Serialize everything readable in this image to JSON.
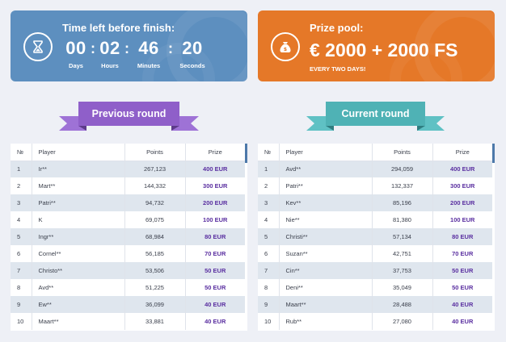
{
  "timer": {
    "title": "Time left before finish:",
    "icon": "hourglass-icon",
    "units": [
      {
        "value": "00",
        "label": "Days"
      },
      {
        "value": "02",
        "label": "Hours"
      },
      {
        "value": "46",
        "label": "Minutes"
      },
      {
        "value": "20",
        "label": "Seconds"
      }
    ],
    "separator": ":"
  },
  "prize": {
    "title": "Prize pool:",
    "icon": "money-bag-icon",
    "amount": "€ 2000 + 2000 FS",
    "subtitle": "EVERY TWO DAYS!"
  },
  "previous_round": {
    "title": "Previous round",
    "color": "#8f5fc9",
    "columns": [
      "№",
      "Player",
      "Points",
      "Prize"
    ],
    "rows": [
      [
        "1",
        "Ir**",
        "267,123",
        "400 EUR"
      ],
      [
        "2",
        "Mart**",
        "144,332",
        "300 EUR"
      ],
      [
        "3",
        "Patri**",
        "94,732",
        "200 EUR"
      ],
      [
        "4",
        "K",
        "69,075",
        "100 EUR"
      ],
      [
        "5",
        "Ingr**",
        "68,984",
        "80 EUR"
      ],
      [
        "6",
        "Cornel**",
        "56,185",
        "70 EUR"
      ],
      [
        "7",
        "Christo**",
        "53,506",
        "50 EUR"
      ],
      [
        "8",
        "Avd**",
        "51,225",
        "50 EUR"
      ],
      [
        "9",
        "Ew**",
        "36,099",
        "40 EUR"
      ],
      [
        "10",
        "Maart**",
        "33,881",
        "40 EUR"
      ]
    ]
  },
  "current_round": {
    "title": "Current round",
    "color": "#4fb2b5",
    "columns": [
      "№",
      "Player",
      "Points",
      "Prize"
    ],
    "rows": [
      [
        "1",
        "Avd**",
        "294,059",
        "400 EUR"
      ],
      [
        "2",
        "Patri**",
        "132,337",
        "300 EUR"
      ],
      [
        "3",
        "Kev**",
        "85,196",
        "200 EUR"
      ],
      [
        "4",
        "Nie**",
        "81,380",
        "100 EUR"
      ],
      [
        "5",
        "Christi**",
        "57,134",
        "80 EUR"
      ],
      [
        "6",
        "Suzan**",
        "42,751",
        "70 EUR"
      ],
      [
        "7",
        "Cin**",
        "37,753",
        "50 EUR"
      ],
      [
        "8",
        "Deni**",
        "35,049",
        "50 EUR"
      ],
      [
        "9",
        "Maart**",
        "28,488",
        "40 EUR"
      ],
      [
        "10",
        "Rub**",
        "27,080",
        "40 EUR"
      ]
    ]
  }
}
